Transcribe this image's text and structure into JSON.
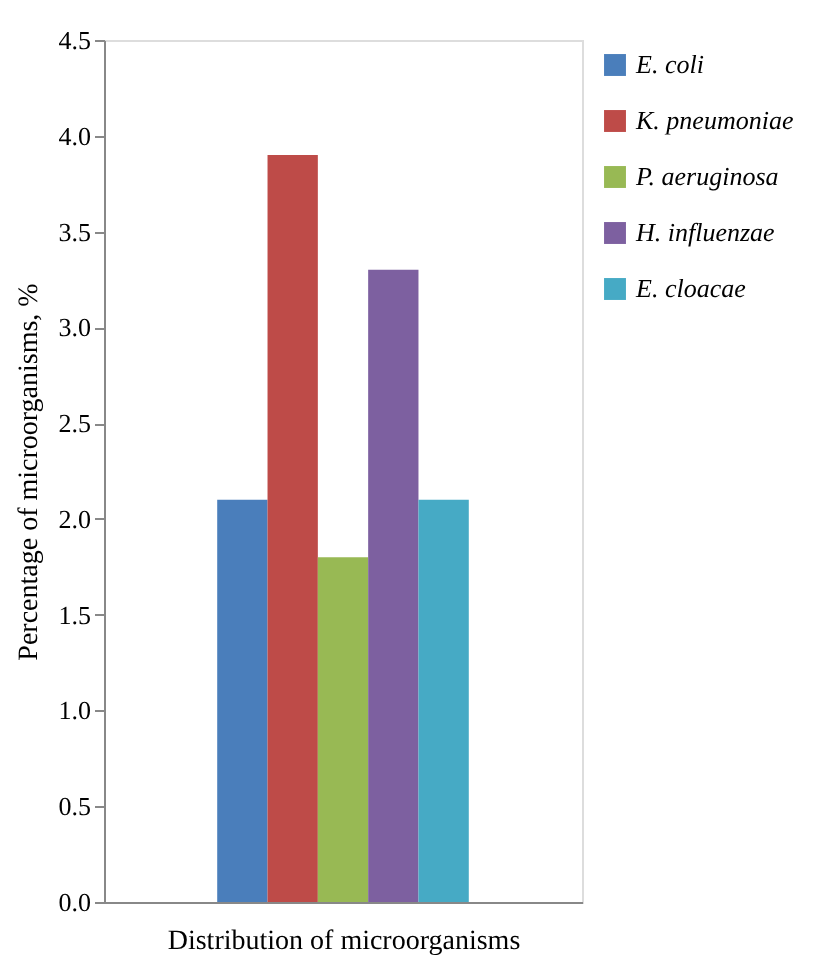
{
  "chart_data": {
    "type": "bar",
    "xlabel": "Distribution of microorganisms",
    "ylabel": "Percentage of microorganisms, %",
    "categories": [
      null
    ],
    "series": [
      {
        "name": "E. coli",
        "color": "#4a7ebb",
        "values": [
          2.1
        ]
      },
      {
        "name": "K. pneumoniae",
        "color": "#be4b48",
        "values": [
          3.9
        ]
      },
      {
        "name": "P. aeruginosa",
        "color": "#98b954",
        "values": [
          1.8
        ]
      },
      {
        "name": "H. influenzae",
        "color": "#7d60a0",
        "values": [
          3.3
        ]
      },
      {
        "name": "E. cloacae",
        "color": "#46aac5",
        "values": [
          2.1
        ]
      }
    ],
    "ylim": [
      0,
      4.5
    ],
    "yticks": [
      {
        "value": 0,
        "label": "0.0"
      },
      {
        "value": 0.5,
        "label": "0.5"
      },
      {
        "value": 1,
        "label": "1.0"
      },
      {
        "value": 1.5,
        "label": "1.5"
      },
      {
        "value": 2,
        "label": "2.0"
      },
      {
        "value": 2.5,
        "label": "2.5"
      },
      {
        "value": 3,
        "label": "3.0"
      },
      {
        "value": 3.5,
        "label": "3.5"
      },
      {
        "value": 4,
        "label": "4.0"
      },
      {
        "value": 4.5,
        "label": "4.5"
      }
    ],
    "grid": false,
    "legend": "right"
  }
}
